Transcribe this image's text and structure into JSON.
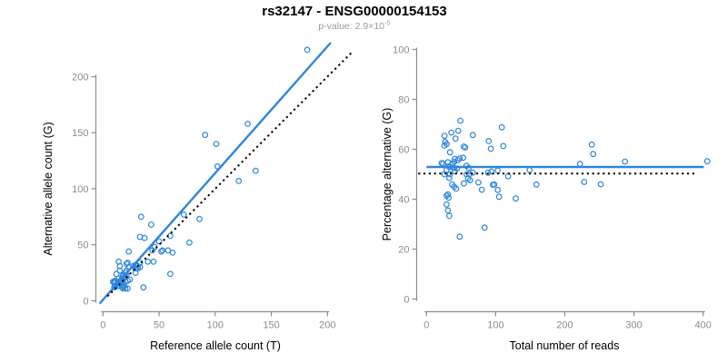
{
  "title": "rs32147 - ENSG00000154153",
  "subtitle": {
    "text": "p-value: 2.9×10",
    "exponent": "-5"
  },
  "colors": {
    "accent": "#2E86DB",
    "identity_line": "#000000",
    "axis": "#8C8C8C",
    "tick_label": "#8C8C8C",
    "axis_title": "#000000",
    "subtitle_text": "#9B9B9B",
    "background": "#FFFFFF"
  },
  "chart_data": [
    {
      "type": "scatter",
      "title": "rs32147 - ENSG00000154153",
      "xlabel": "Reference allele count (T)",
      "ylabel": "Alternative allele count (G)",
      "x_ticks": [
        0,
        50,
        100,
        150,
        200
      ],
      "y_ticks": [
        0,
        50,
        100,
        150,
        200
      ],
      "xlim": [
        0,
        206
      ],
      "ylim": [
        0,
        230
      ],
      "marker": "open-circle",
      "points": [
        [
          14,
          35
        ],
        [
          15,
          31
        ],
        [
          12,
          24
        ],
        [
          23,
          44
        ],
        [
          15,
          27
        ],
        [
          9,
          17
        ],
        [
          11,
          18
        ],
        [
          10,
          16
        ],
        [
          10,
          17
        ],
        [
          21,
          33
        ],
        [
          22,
          34
        ],
        [
          33,
          57
        ],
        [
          37,
          56
        ],
        [
          34,
          75
        ],
        [
          43,
          68
        ],
        [
          14,
          20
        ],
        [
          18,
          23
        ],
        [
          20,
          25
        ],
        [
          21,
          27
        ],
        [
          23,
          30
        ],
        [
          18,
          22
        ],
        [
          17,
          20
        ],
        [
          27,
          31
        ],
        [
          29,
          32
        ],
        [
          14,
          17
        ],
        [
          11,
          13
        ],
        [
          10,
          12
        ],
        [
          15,
          17
        ],
        [
          16,
          18
        ],
        [
          19,
          21
        ],
        [
          21,
          23
        ],
        [
          13,
          13
        ],
        [
          14,
          15
        ],
        [
          17,
          17
        ],
        [
          20,
          21
        ],
        [
          29,
          29
        ],
        [
          31,
          31
        ],
        [
          33,
          34
        ],
        [
          44,
          45
        ],
        [
          46,
          48
        ],
        [
          50,
          53
        ],
        [
          60,
          58
        ],
        [
          31,
          29
        ],
        [
          33,
          30
        ],
        [
          29,
          25
        ],
        [
          17,
          16
        ],
        [
          20,
          17
        ],
        [
          40,
          35
        ],
        [
          52,
          44
        ],
        [
          53,
          45
        ],
        [
          58,
          45
        ],
        [
          45,
          35
        ],
        [
          22,
          18
        ],
        [
          24,
          19
        ],
        [
          86,
          73
        ],
        [
          62,
          43
        ],
        [
          77,
          52
        ],
        [
          17,
          12
        ],
        [
          18,
          13
        ],
        [
          19,
          13
        ],
        [
          18,
          11
        ],
        [
          20,
          11
        ],
        [
          22,
          11
        ],
        [
          36,
          12
        ],
        [
          60,
          24
        ],
        [
          72,
          77
        ],
        [
          102,
          120
        ],
        [
          121,
          107
        ],
        [
          91,
          148
        ],
        [
          101,
          140
        ],
        [
          136,
          116
        ],
        [
          129,
          158
        ],
        [
          182,
          224
        ]
      ],
      "lines": [
        {
          "id": "fit",
          "slope": 1.13,
          "intercept": 1,
          "x_range": [
            -3,
            203
          ],
          "style": "solid",
          "color": "#2E86DB"
        },
        {
          "id": "identity",
          "slope": 1,
          "intercept": 0,
          "x_range": [
            4,
            222
          ],
          "style": "dotted",
          "color": "#000000"
        }
      ]
    },
    {
      "type": "scatter",
      "xlabel": "Total number of reads",
      "ylabel": "Percentage alternative (G)",
      "x_ticks": [
        0,
        100,
        200,
        300,
        400
      ],
      "y_ticks": [
        0,
        20,
        40,
        60,
        80,
        100
      ],
      "xlim": [
        0,
        410
      ],
      "ylim": [
        0,
        100
      ],
      "marker": "open-circle",
      "points": [
        [
          49,
          71.4
        ],
        [
          46,
          67.4
        ],
        [
          36,
          66.7
        ],
        [
          67,
          65.7
        ],
        [
          42,
          64.3
        ],
        [
          26,
          65.4
        ],
        [
          29,
          62.1
        ],
        [
          26,
          61.5
        ],
        [
          27,
          63.0
        ],
        [
          54,
          61.1
        ],
        [
          56,
          60.7
        ],
        [
          90,
          63.3
        ],
        [
          93,
          60.2
        ],
        [
          109,
          68.8
        ],
        [
          111,
          61.3
        ],
        [
          34,
          58.8
        ],
        [
          41,
          56.1
        ],
        [
          45,
          55.6
        ],
        [
          48,
          56.3
        ],
        [
          53,
          56.6
        ],
        [
          40,
          55.0
        ],
        [
          37,
          54.1
        ],
        [
          58,
          53.4
        ],
        [
          61,
          52.5
        ],
        [
          31,
          54.8
        ],
        [
          24,
          54.2
        ],
        [
          22,
          54.5
        ],
        [
          32,
          53.1
        ],
        [
          34,
          52.9
        ],
        [
          40,
          52.5
        ],
        [
          44,
          52.3
        ],
        [
          26,
          50.0
        ],
        [
          29,
          51.7
        ],
        [
          34,
          50.0
        ],
        [
          41,
          51.2
        ],
        [
          58,
          50.0
        ],
        [
          62,
          50.0
        ],
        [
          67,
          50.7
        ],
        [
          89,
          50.6
        ],
        [
          94,
          51.1
        ],
        [
          103,
          51.5
        ],
        [
          118,
          49.2
        ],
        [
          60,
          48.3
        ],
        [
          63,
          47.6
        ],
        [
          54,
          46.3
        ],
        [
          33,
          48.5
        ],
        [
          37,
          45.9
        ],
        [
          75,
          46.7
        ],
        [
          96,
          45.8
        ],
        [
          98,
          45.9
        ],
        [
          103,
          43.7
        ],
        [
          80,
          43.8
        ],
        [
          40,
          45.0
        ],
        [
          43,
          44.2
        ],
        [
          159,
          45.9
        ],
        [
          105,
          41.0
        ],
        [
          129,
          40.3
        ],
        [
          29,
          41.4
        ],
        [
          31,
          41.9
        ],
        [
          32,
          40.6
        ],
        [
          29,
          37.9
        ],
        [
          31,
          35.5
        ],
        [
          33,
          33.3
        ],
        [
          48,
          25.0
        ],
        [
          84,
          28.6
        ],
        [
          149,
          51.7
        ],
        [
          222,
          54.1
        ],
        [
          228,
          46.9
        ],
        [
          239,
          61.9
        ],
        [
          241,
          58.1
        ],
        [
          252,
          46.0
        ],
        [
          287,
          55.1
        ],
        [
          406,
          55.2
        ]
      ],
      "lines": [
        {
          "id": "fit",
          "slope": 0,
          "intercept": 52.9,
          "x_range": [
            0,
            401
          ],
          "style": "solid",
          "color": "#2E86DB"
        },
        {
          "id": "null",
          "slope": 0,
          "intercept": 50.3,
          "x_range": [
            -12,
            392
          ],
          "style": "dotted",
          "color": "#000000"
        }
      ]
    }
  ]
}
